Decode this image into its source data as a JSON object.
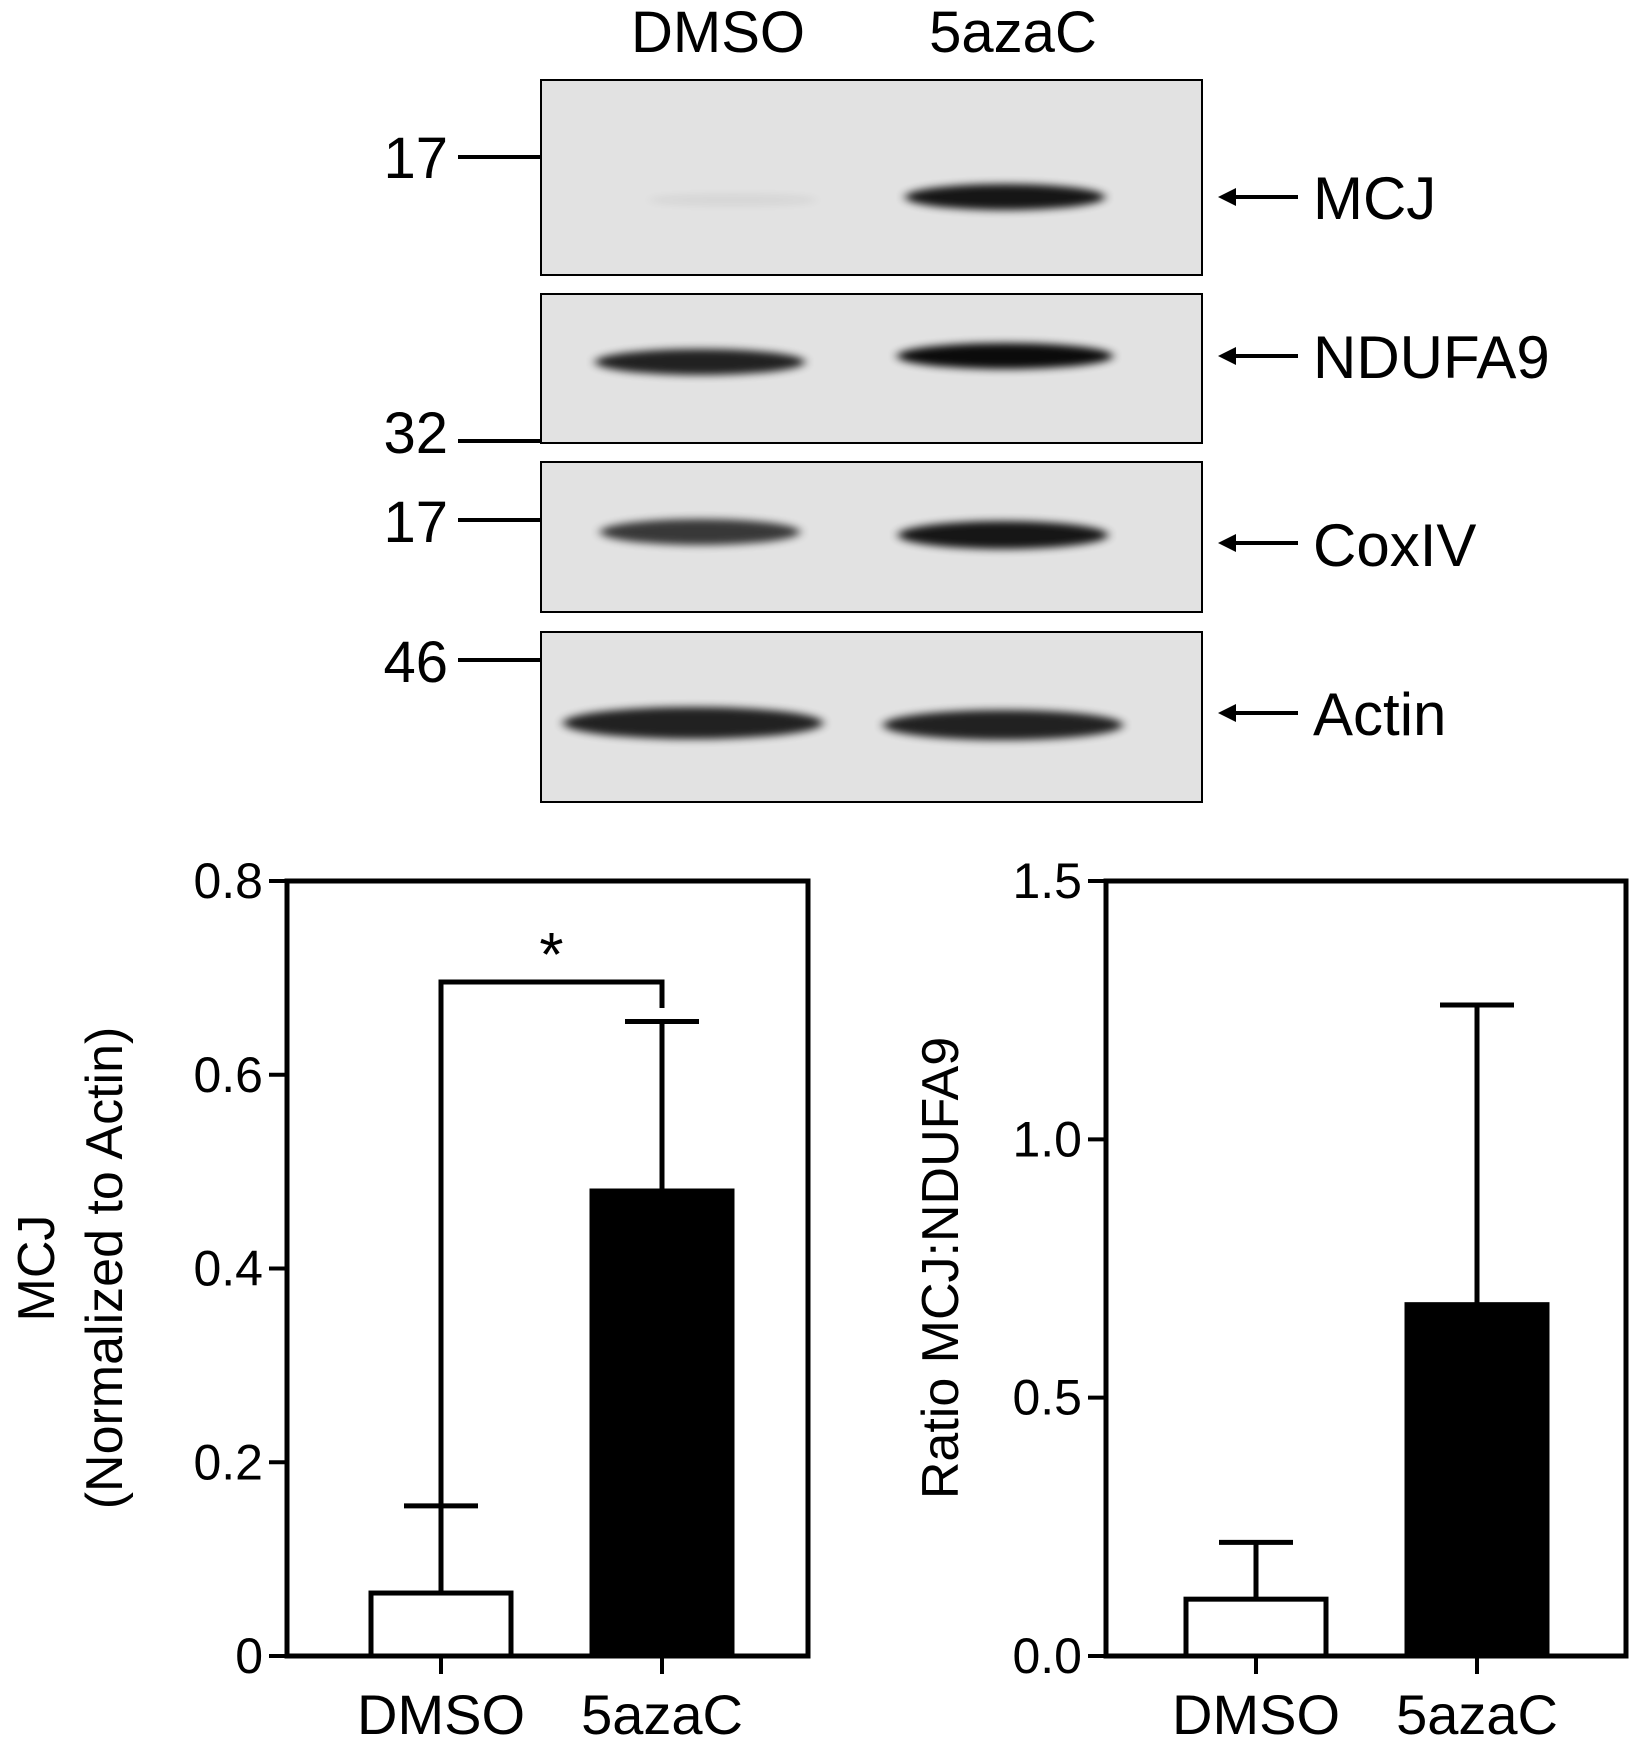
{
  "blot": {
    "lanes": [
      "DMSO",
      "5azaC"
    ],
    "panels": [
      {
        "protein": "MCJ",
        "markers": [
          "17"
        ],
        "band_intensity": [
          0.05,
          0.9
        ]
      },
      {
        "protein": "NDUFA9",
        "markers": [
          "32"
        ],
        "band_intensity": [
          0.85,
          0.95
        ]
      },
      {
        "protein": "CoxIV",
        "markers": [
          "17"
        ],
        "band_intensity": [
          0.75,
          0.9
        ]
      },
      {
        "protein": "Actin",
        "markers": [
          "46"
        ],
        "band_intensity": [
          0.85,
          0.85
        ]
      }
    ]
  },
  "chart_data": [
    {
      "type": "bar",
      "categories": [
        "DMSO",
        "5azaC"
      ],
      "values": [
        0.065,
        0.48
      ],
      "error_upper": [
        0.155,
        0.655
      ],
      "bar_fill": [
        "#ffffff",
        "#000000"
      ],
      "xlabel": "",
      "ylabel_lines": [
        "MCJ",
        "(Normalized to Actin)"
      ],
      "ylim": [
        0,
        0.8
      ],
      "yticks": [
        "0",
        "0.2",
        "0.4",
        "0.6",
        "0.8"
      ],
      "significance": {
        "pair": [
          "DMSO",
          "5azaC"
        ],
        "label": "*"
      }
    },
    {
      "type": "bar",
      "categories": [
        "DMSO",
        "5azaC"
      ],
      "values": [
        0.11,
        0.68
      ],
      "error_upper": [
        0.22,
        1.26
      ],
      "bar_fill": [
        "#ffffff",
        "#000000"
      ],
      "xlabel": "",
      "ylabel_lines": [
        "Ratio MCJ:NDUFA9"
      ],
      "ylim": [
        0,
        1.5
      ],
      "yticks": [
        "0.0",
        "0.5",
        "1.0",
        "1.5"
      ]
    }
  ]
}
